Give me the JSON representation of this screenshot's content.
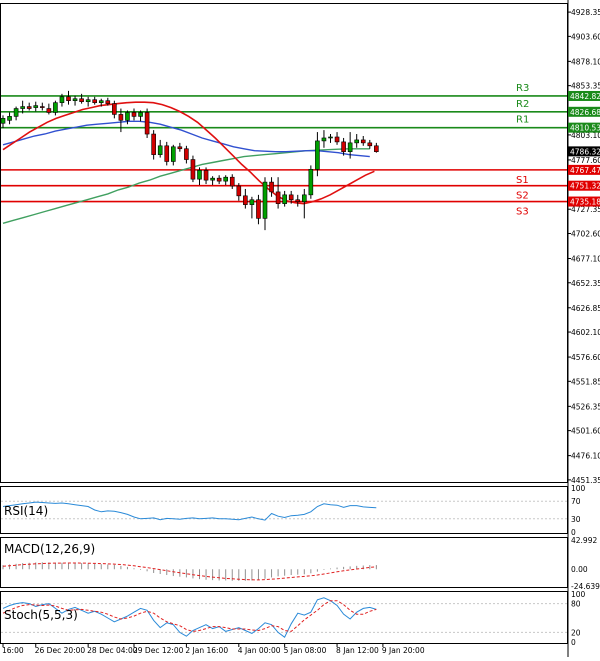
{
  "colors": {
    "background": "#ffffff",
    "grid": "#d0d0d0",
    "frame": "#000000",
    "candle": "#000000",
    "bull_fill": "#00a000",
    "bear_fill": "#d00000",
    "ma_red": "#e01010",
    "ma_blue": "#3050d0",
    "ma_green": "#40a060",
    "resistance": "#1a8a1a",
    "support": "#e00000",
    "price_tag": "#000000",
    "rsi_line": "#2a8ad8",
    "macd_signal": "#e02020",
    "macd_hist": "#909090",
    "stoch_main": "#2a8ad8",
    "stoch_signal": "#e02020"
  },
  "chart_data": {
    "type": "candlestick",
    "instrument": "",
    "main": {
      "y_ticks": [
        4928.35,
        4903.6,
        4878.1,
        4853.35,
        4828.6,
        4803.1,
        4777.6,
        4752.85,
        4727.35,
        4702.6,
        4677.1,
        4652.35,
        4626.85,
        4602.1,
        4576.6,
        4551.85,
        4526.35,
        4501.6,
        4476.1,
        4451.35
      ],
      "ylim": [
        4449.2,
        4936.6
      ],
      "current_price": 4786.32,
      "current_price_label": "4786.32",
      "levels": [
        {
          "name": "R3",
          "value": 4842.82,
          "label": "4842.82",
          "kind": "resistance"
        },
        {
          "name": "R2",
          "value": 4826.68,
          "label": "4826.68",
          "kind": "resistance"
        },
        {
          "name": "R1",
          "value": 4810.53,
          "label": "4810.53",
          "kind": "resistance"
        },
        {
          "name": "S1",
          "value": 4767.47,
          "label": "4767.47",
          "kind": "support"
        },
        {
          "name": "S2",
          "value": 4751.32,
          "label": "4751.32",
          "kind": "support"
        },
        {
          "name": "S3",
          "value": 4735.18,
          "label": "4735.18",
          "kind": "support"
        }
      ],
      "candles": [
        [
          4815,
          4823,
          4810,
          4820
        ],
        [
          4818,
          4826,
          4814,
          4822
        ],
        [
          4822,
          4832,
          4818,
          4830
        ],
        [
          4830,
          4838,
          4825,
          4832
        ],
        [
          4832,
          4836,
          4828,
          4830
        ],
        [
          4831,
          4837,
          4827,
          4833
        ],
        [
          4832,
          4836,
          4828,
          4831
        ],
        [
          4830,
          4835,
          4824,
          4826
        ],
        [
          4826,
          4838,
          4823,
          4836
        ],
        [
          4836,
          4845,
          4832,
          4842
        ],
        [
          4842,
          4848,
          4834,
          4838
        ],
        [
          4838,
          4843,
          4833,
          4840
        ],
        [
          4840,
          4845,
          4835,
          4837
        ],
        [
          4837,
          4842,
          4832,
          4839
        ],
        [
          4839,
          4842,
          4834,
          4836
        ],
        [
          4836,
          4840,
          4832,
          4838
        ],
        [
          4838,
          4841,
          4833,
          4835
        ],
        [
          4835,
          4838,
          4820,
          4824
        ],
        [
          4824,
          4830,
          4806,
          4818
        ],
        [
          4818,
          4828,
          4814,
          4826
        ],
        [
          4826,
          4830,
          4818,
          4822
        ],
        [
          4822,
          4828,
          4817,
          4826
        ],
        [
          4826,
          4830,
          4800,
          4804
        ],
        [
          4804,
          4808,
          4778,
          4783
        ],
        [
          4783,
          4798,
          4780,
          4792
        ],
        [
          4792,
          4796,
          4772,
          4776
        ],
        [
          4776,
          4793,
          4772,
          4791
        ],
        [
          4791,
          4795,
          4786,
          4789
        ],
        [
          4789,
          4792,
          4774,
          4778
        ],
        [
          4778,
          4782,
          4755,
          4758
        ],
        [
          4758,
          4770,
          4752,
          4767
        ],
        [
          4767,
          4770,
          4753,
          4757
        ],
        [
          4757,
          4761,
          4752,
          4759
        ],
        [
          4759,
          4762,
          4753,
          4756
        ],
        [
          4756,
          4762,
          4752,
          4760
        ],
        [
          4760,
          4763,
          4748,
          4751
        ],
        [
          4751,
          4754,
          4736,
          4741
        ],
        [
          4741,
          4748,
          4728,
          4732
        ],
        [
          4732,
          4740,
          4718,
          4737
        ],
        [
          4737,
          4742,
          4712,
          4718
        ],
        [
          4718,
          4760,
          4706,
          4755
        ],
        [
          4755,
          4760,
          4740,
          4745
        ],
        [
          4745,
          4760,
          4728,
          4733
        ],
        [
          4733,
          4746,
          4730,
          4742
        ],
        [
          4742,
          4746,
          4733,
          4737
        ],
        [
          4737,
          4742,
          4730,
          4735
        ],
        [
          4735,
          4748,
          4718,
          4742
        ],
        [
          4742,
          4772,
          4738,
          4768
        ],
        [
          4768,
          4806,
          4761,
          4797
        ],
        [
          4797,
          4808,
          4790,
          4800
        ],
        [
          4800,
          4804,
          4795,
          4801
        ],
        [
          4801,
          4806,
          4793,
          4796
        ],
        [
          4796,
          4800,
          4782,
          4786
        ],
        [
          4786,
          4806,
          4779,
          4795
        ],
        [
          4795,
          4804,
          4790,
          4798
        ],
        [
          4798,
          4802,
          4792,
          4795
        ],
        [
          4795,
          4798,
          4789,
          4792
        ],
        [
          4792,
          4795,
          4785,
          4786
        ]
      ],
      "ma_red": [
        4788,
        4794,
        4800,
        4806,
        4811,
        4816,
        4820,
        4823,
        4826,
        4829,
        4831,
        4833,
        4834,
        4835,
        4836,
        4836.5,
        4836.5,
        4836,
        4834,
        4831,
        4827,
        4822,
        4816,
        4808,
        4800,
        4791,
        4782,
        4773,
        4765,
        4756,
        4748,
        4741,
        4736,
        4734,
        4733,
        4735,
        4738,
        4742,
        4747,
        4752,
        4757,
        4762,
        4766
      ],
      "ma_blue": [
        4793,
        4796,
        4799,
        4802,
        4804,
        4807,
        4809,
        4811,
        4813,
        4814,
        4815,
        4816,
        4817,
        4817,
        4816,
        4814,
        4811,
        4808,
        4804,
        4800,
        4797,
        4794,
        4791,
        4789,
        4787,
        4786.5,
        4786,
        4786,
        4786.5,
        4787,
        4787,
        4786,
        4785,
        4783,
        4782,
        4781
      ],
      "ma_green": [
        4713,
        4716,
        4719,
        4722,
        4725,
        4728,
        4731,
        4734,
        4737,
        4740,
        4743,
        4747,
        4750,
        4754,
        4757,
        4761,
        4764,
        4767,
        4770,
        4773,
        4775,
        4777,
        4779,
        4781,
        4782,
        4783,
        4784,
        4785,
        4786,
        4787,
        4787.5,
        4788,
        4788.5,
        4789,
        4789,
        4789
      ]
    },
    "rsi": {
      "label": "RSI(14)",
      "ylim": [
        0,
        100
      ],
      "ticks": [
        100,
        70,
        30,
        0
      ],
      "values": [
        58,
        60,
        62,
        64,
        66,
        68,
        67,
        66,
        65,
        66,
        64,
        62,
        60,
        58,
        50,
        46,
        48,
        47,
        44,
        40,
        34,
        30,
        31,
        32,
        28,
        31,
        30,
        29,
        31,
        32,
        30,
        31,
        32,
        30,
        30,
        29,
        28,
        31,
        34,
        30,
        27,
        42,
        36,
        33,
        37,
        38,
        40,
        46,
        58,
        64,
        62,
        61,
        56,
        60,
        60,
        57,
        56,
        55
      ]
    },
    "macd": {
      "label": "MACD(12,26,9)",
      "ticks": [
        42.992,
        0.0,
        -24.639
      ],
      "tick_labels": [
        "42.992",
        "0.00",
        "-24.639"
      ],
      "ylim": [
        -24.639,
        42.992
      ],
      "histogram": [
        6,
        7,
        8,
        9,
        9.5,
        10,
        10.2,
        10,
        9.6,
        9.5,
        9.8,
        9.5,
        9,
        8.5,
        8,
        7.5,
        7,
        6.5,
        5,
        3.5,
        1.5,
        -1,
        -3,
        -5.5,
        -7,
        -8.5,
        -10,
        -11,
        -12,
        -13.5,
        -14.5,
        -15.5,
        -16,
        -16.5,
        -16.5,
        -17,
        -17,
        -17,
        -16.5,
        -16,
        -14,
        -12,
        -10.5,
        -9.5,
        -8.5,
        -8,
        -7.5,
        -6,
        -3.5,
        -1,
        1,
        2.5,
        3.5,
        4.2,
        5,
        5.5,
        6,
        6.2
      ],
      "signal": [
        4.5,
        5.2,
        6,
        6.8,
        7.4,
        8,
        8.5,
        8.8,
        9,
        9.1,
        9.2,
        9.2,
        9.1,
        8.9,
        8.6,
        8.3,
        7.9,
        7.5,
        6.9,
        6.1,
        5,
        3.8,
        2.4,
        0.9,
        -0.6,
        -2.1,
        -3.7,
        -5.2,
        -6.6,
        -8,
        -9.3,
        -10.5,
        -11.6,
        -12.6,
        -13.4,
        -14.1,
        -14.7,
        -15.2,
        -15.5,
        -15.6,
        -15.3,
        -14.7,
        -13.9,
        -13,
        -12.1,
        -11.3,
        -10.5,
        -9.6,
        -8.4,
        -7,
        -5.4,
        -3.8,
        -2.3,
        -0.9,
        0.4,
        1.6,
        2.7,
        3.6
      ]
    },
    "stoch": {
      "label": "Stoch(5,5,3)",
      "ylim": [
        0,
        100
      ],
      "ticks": [
        100,
        80,
        20,
        0
      ],
      "main": [
        70,
        76,
        80,
        82,
        80,
        74,
        78,
        80,
        70,
        60,
        68,
        72,
        66,
        60,
        64,
        58,
        50,
        42,
        48,
        54,
        62,
        70,
        66,
        45,
        30,
        40,
        36,
        20,
        12,
        24,
        30,
        36,
        28,
        32,
        22,
        26,
        30,
        24,
        18,
        28,
        40,
        36,
        20,
        10,
        38,
        60,
        56,
        62,
        88,
        92,
        86,
        76,
        58,
        48,
        62,
        70,
        72,
        68
      ],
      "signal": [
        60,
        66,
        72,
        76,
        78,
        77,
        76,
        77,
        75,
        70,
        66,
        67,
        68,
        66,
        64,
        62,
        58,
        52,
        48,
        50,
        54,
        60,
        64,
        60,
        50,
        42,
        38,
        34,
        26,
        22,
        24,
        28,
        32,
        32,
        30,
        27,
        27,
        27,
        25,
        24,
        28,
        34,
        32,
        24,
        22,
        34,
        46,
        56,
        66,
        78,
        86,
        86,
        78,
        66,
        58,
        58,
        64,
        68
      ]
    },
    "x_ticks": [
      {
        "label": "16:00",
        "index": 0
      },
      {
        "label": "26 Dec 20:00",
        "index": 5
      },
      {
        "label": "28 Dec 04:00",
        "index": 13
      },
      {
        "label": "29 Dec 12:00",
        "index": 20
      },
      {
        "label": "2 Jan 16:00",
        "index": 28
      },
      {
        "label": "4 Jan 00:00",
        "index": 36
      },
      {
        "label": "5 Jan 08:00",
        "index": 43
      },
      {
        "label": "8 Jan 12:00",
        "index": 51
      },
      {
        "label": "9 Jan 20:00",
        "index": 58
      }
    ],
    "grid": false
  }
}
